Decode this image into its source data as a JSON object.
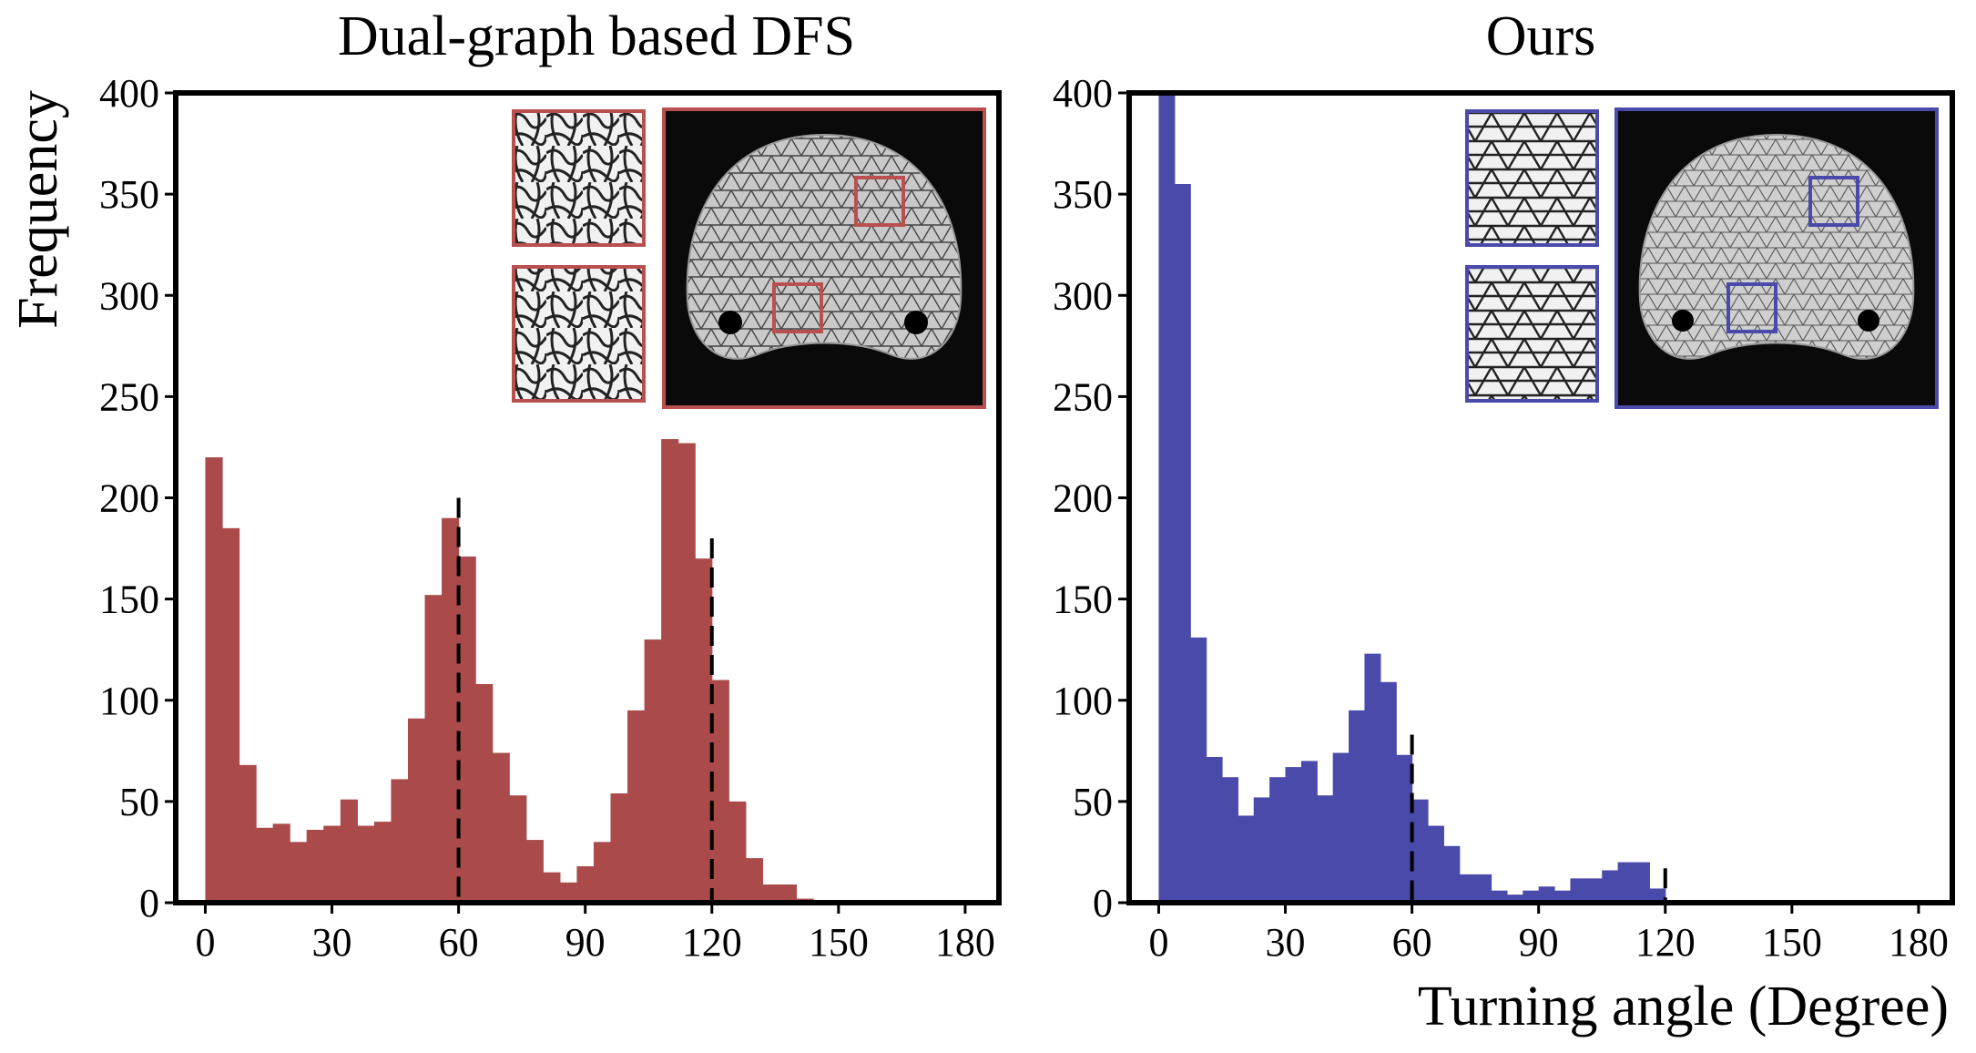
{
  "figure": {
    "ylabel": "Frequency",
    "xlabel": "Turning angle (Degree)"
  },
  "chart_data": [
    {
      "type": "bar",
      "title": "Dual-graph based DFS",
      "xlim": [
        -7,
        188
      ],
      "ylim": [
        0,
        400
      ],
      "xticks": [
        0,
        30,
        60,
        90,
        120,
        150,
        180
      ],
      "yticks": [
        0,
        50,
        100,
        150,
        200,
        250,
        300,
        350,
        400
      ],
      "bin_width": 4,
      "bin_start": 0,
      "values": [
        220,
        185,
        68,
        37,
        39,
        30,
        36,
        38,
        51,
        38,
        40,
        61,
        91,
        152,
        190,
        171,
        108,
        74,
        53,
        31,
        15,
        10,
        18,
        30,
        54,
        95,
        130,
        229,
        227,
        170,
        110,
        50,
        22,
        9,
        9,
        2
      ],
      "color": "#aa4a4a",
      "frame_color": "#b94f4f",
      "reference_lines": [
        60,
        120
      ]
    },
    {
      "type": "bar",
      "title": "Ours",
      "xlim": [
        -7,
        188
      ],
      "ylim": [
        0,
        400
      ],
      "xticks": [
        0,
        30,
        60,
        90,
        120,
        150,
        180
      ],
      "yticks": [
        0,
        50,
        100,
        150,
        200,
        250,
        300,
        350,
        400
      ],
      "bin_width": 3.75,
      "bin_start": 0,
      "values": [
        400,
        355,
        131,
        72,
        62,
        43,
        52,
        62,
        67,
        70,
        53,
        74,
        95,
        123,
        109,
        73,
        51,
        38,
        28,
        14,
        14,
        6,
        4,
        6,
        8,
        6,
        12,
        12,
        16,
        20,
        20,
        7
      ],
      "color": "#4a4aaa",
      "frame_color": "#4a4aaa",
      "reference_lines": [
        60,
        120
      ]
    }
  ]
}
